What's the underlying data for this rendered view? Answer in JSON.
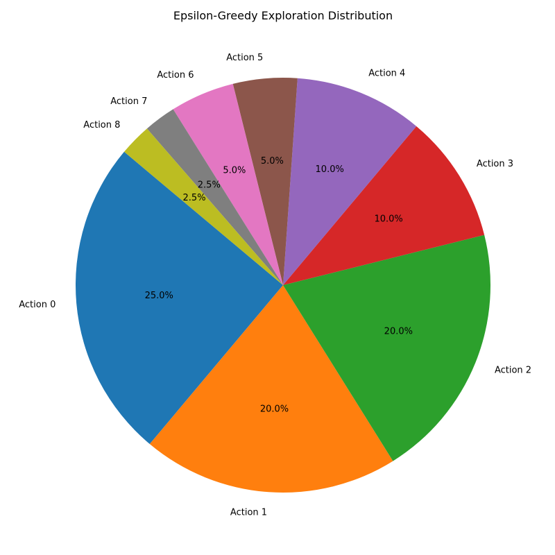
{
  "chart_data": {
    "type": "pie",
    "title": "Epsilon-Greedy Exploration Distribution",
    "start_angle_deg": 140,
    "direction": "counterclockwise",
    "slices": [
      {
        "label": "Action 0",
        "value": 25.0,
        "pct_label": "25.0%",
        "color": "#1f77b4"
      },
      {
        "label": "Action 1",
        "value": 20.0,
        "pct_label": "20.0%",
        "color": "#ff7f0e"
      },
      {
        "label": "Action 2",
        "value": 20.0,
        "pct_label": "20.0%",
        "color": "#2ca02c"
      },
      {
        "label": "Action 3",
        "value": 10.0,
        "pct_label": "10.0%",
        "color": "#d62728"
      },
      {
        "label": "Action 4",
        "value": 10.0,
        "pct_label": "10.0%",
        "color": "#9467bd"
      },
      {
        "label": "Action 5",
        "value": 5.0,
        "pct_label": "5.0%",
        "color": "#8c564b"
      },
      {
        "label": "Action 6",
        "value": 5.0,
        "pct_label": "5.0%",
        "color": "#e377c2"
      },
      {
        "label": "Action 7",
        "value": 2.5,
        "pct_label": "2.5%",
        "color": "#7f7f7f"
      },
      {
        "label": "Action 8",
        "value": 2.5,
        "pct_label": "2.5%",
        "color": "#bcbd22"
      }
    ]
  }
}
